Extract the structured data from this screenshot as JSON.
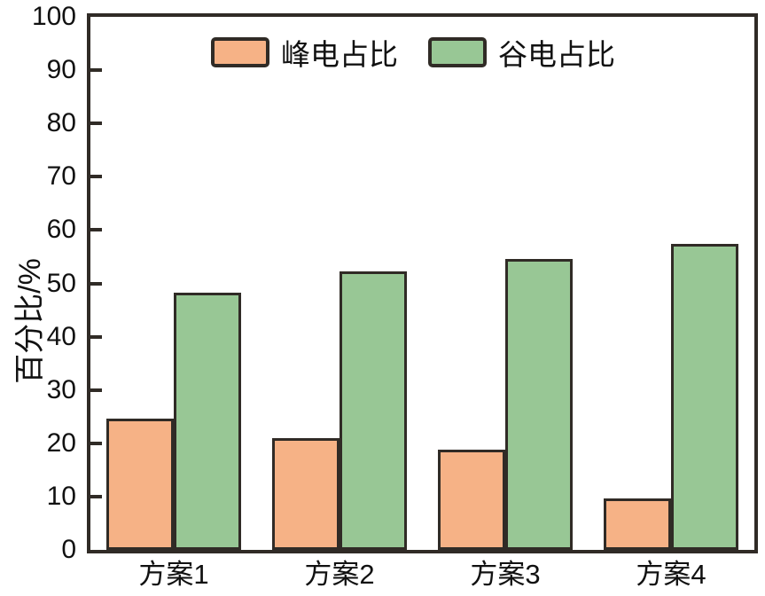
{
  "chart_data": {
    "type": "bar",
    "title": "",
    "categories": [
      "方案1",
      "方案2",
      "方案3",
      "方案4"
    ],
    "series": [
      {
        "name": "峰电占比",
        "color": "#f6b286",
        "values": [
          24.7,
          21.0,
          18.8,
          9.6
        ]
      },
      {
        "name": "谷电占比",
        "color": "#98c795",
        "values": [
          48.3,
          52.3,
          54.5,
          57.4
        ]
      }
    ],
    "xlabel": "",
    "ylabel": "百分比/%",
    "ylim": [
      0,
      100
    ],
    "ytick_step": 10,
    "ytick_labels": [
      "0",
      "10",
      "20",
      "30",
      "40",
      "50",
      "60",
      "70",
      "80",
      "90",
      "100"
    ],
    "grid": false,
    "legend_position": "top-center",
    "frame_color": "#302b26",
    "bar_border_color": "#302b26",
    "text_color": "#111111",
    "background_color": "#ffffff"
  }
}
